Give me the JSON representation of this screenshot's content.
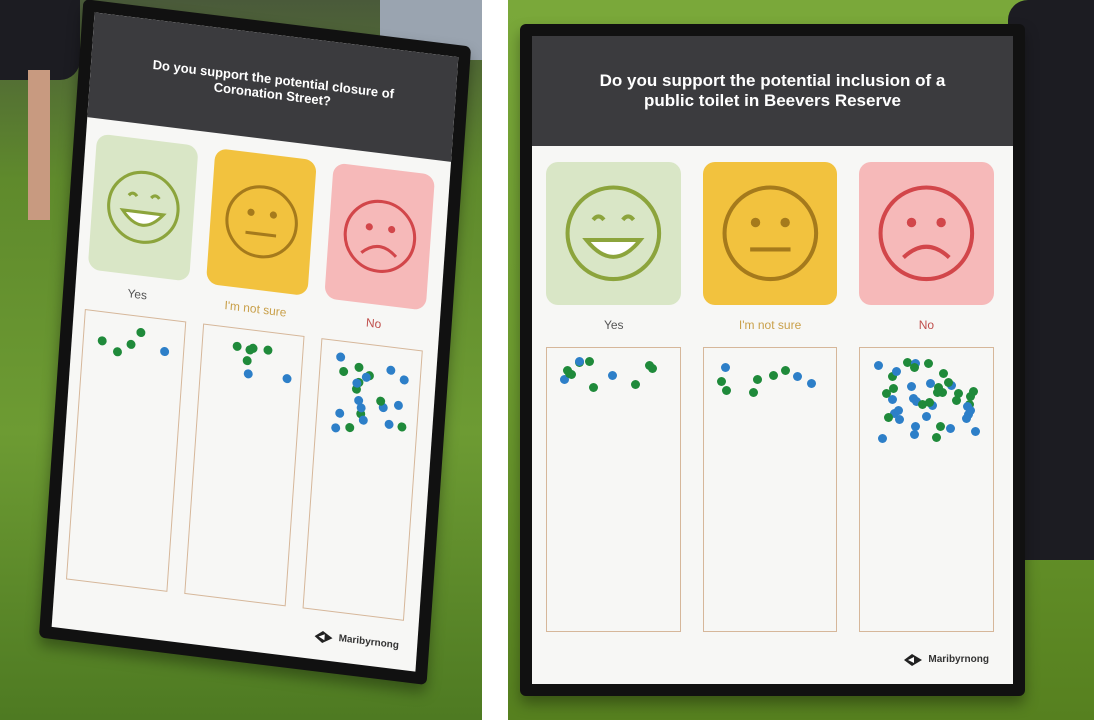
{
  "boards": [
    {
      "question": "Do you support the potential closure of Coronation Street?",
      "options": [
        "Yes",
        "I'm not sure",
        "No"
      ],
      "logo": "Maribyrnong"
    },
    {
      "question": "Do you support the potential inclusion of a public toilet in Beevers Reserve",
      "options": [
        "Yes",
        "I'm not sure",
        "No"
      ],
      "logo": "Maribyrnong"
    }
  ]
}
